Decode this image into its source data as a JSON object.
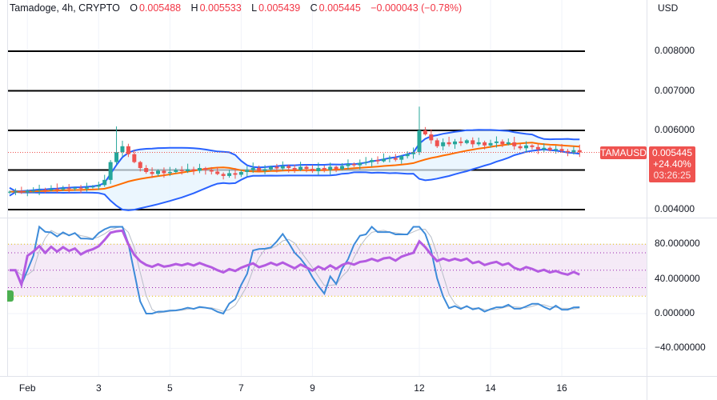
{
  "legend": {
    "symbol": "Tamadoge, 4h, CRYPTO",
    "o_label": "O",
    "o": "0.005488",
    "h_label": "H",
    "h": "0.005533",
    "l_label": "L",
    "l": "0.005439",
    "c_label": "C",
    "c": "0.005445",
    "change": "−0.000043 (−0.78%)"
  },
  "currency": "USD",
  "price_tag": {
    "symbol": "TAMAUSD",
    "price": "0.005445",
    "change_pct": "+24.40%",
    "countdown": "03:26:25"
  },
  "colors": {
    "up": "#26a69a",
    "down": "#ef5350",
    "bb_band": "#2962ff",
    "bb_mid": "#ff6d00",
    "bb_fill": "#e3f2fd",
    "rsi": "#b45be1",
    "stoch_k": "#3d8bd9",
    "stoch_d": "#b8bec9",
    "level": "#000000"
  },
  "chart_data": {
    "type": "candlestick",
    "title": "Tamadoge, 4h, CRYPTO",
    "price_axis": {
      "ylim": [
        0.0037,
        0.0086
      ],
      "ticks": [
        "0.008000",
        "0.007000",
        "0.006000",
        "0.004000"
      ],
      "tick_values": [
        0.008,
        0.007,
        0.006,
        0.004
      ]
    },
    "horizontal_levels": [
      0.008,
      0.007,
      0.006,
      0.005,
      0.004
    ],
    "x_ticks": [
      {
        "label": "Feb",
        "index": 3
      },
      {
        "label": "3",
        "index": 15
      },
      {
        "label": "5",
        "index": 27
      },
      {
        "label": "7",
        "index": 39
      },
      {
        "label": "9",
        "index": 51
      },
      {
        "label": "12",
        "index": 69
      },
      {
        "label": "14",
        "index": 81
      },
      {
        "label": "16",
        "index": 93
      }
    ],
    "closes": [
      0.00445,
      0.00446,
      0.00444,
      0.00447,
      0.00448,
      0.0045,
      0.00449,
      0.00452,
      0.00451,
      0.00454,
      0.00453,
      0.00455,
      0.00453,
      0.00456,
      0.00458,
      0.00462,
      0.00475,
      0.0052,
      0.00545,
      0.0056,
      0.0054,
      0.0052,
      0.00505,
      0.00495,
      0.0049,
      0.00498,
      0.00492,
      0.00495,
      0.005,
      0.00497,
      0.00502,
      0.00498,
      0.00505,
      0.005,
      0.00496,
      0.0049,
      0.00485,
      0.00492,
      0.00488,
      0.00495,
      0.005,
      0.00505,
      0.00498,
      0.00502,
      0.00508,
      0.00504,
      0.0051,
      0.00505,
      0.005,
      0.00508,
      0.00503,
      0.00497,
      0.00505,
      0.005,
      0.00508,
      0.00502,
      0.0051,
      0.00515,
      0.00512,
      0.00518,
      0.0052,
      0.00525,
      0.00522,
      0.00528,
      0.0053,
      0.00526,
      0.00535,
      0.0054,
      0.00545,
      0.006,
      0.0059,
      0.00575,
      0.0056,
      0.0057,
      0.00565,
      0.00572,
      0.00568,
      0.00575,
      0.00565,
      0.0057,
      0.00562,
      0.00568,
      0.00572,
      0.00565,
      0.0057,
      0.0056,
      0.00555,
      0.00562,
      0.00558,
      0.00552,
      0.00556,
      0.0055,
      0.00553,
      0.00548,
      0.00545,
      0.0055,
      0.005445
    ],
    "spike_highs": {
      "18": 0.0061,
      "69": 0.0066
    },
    "indicators": [
      "Bollinger Bands (20, 2)",
      "RSI (14)",
      "Stochastic RSI (14,14,3,3)"
    ],
    "oscillator_axis": {
      "ylim": [
        -50,
        100
      ],
      "ticks": [
        "80.000000",
        "40.000000",
        "0.000000",
        "−40.000000"
      ],
      "tick_values": [
        80,
        40,
        0,
        -40
      ],
      "bands": [
        80,
        20
      ],
      "levels": [
        70,
        50,
        30
      ]
    }
  }
}
